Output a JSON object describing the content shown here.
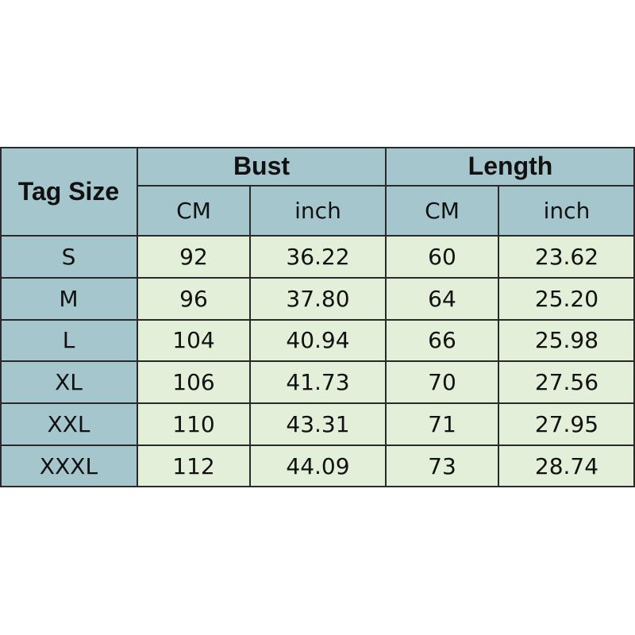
{
  "table": {
    "tag_size": "Tag Size",
    "groups": [
      "Bust",
      "Length"
    ],
    "subheaders": [
      "CM",
      "inch",
      "CM",
      "inch"
    ],
    "rows": [
      [
        "S",
        "92",
        "36.22",
        "60",
        "23.62"
      ],
      [
        "M",
        "96",
        "37.80",
        "64",
        "25.20"
      ],
      [
        "L",
        "104",
        "40.94",
        "66",
        "25.98"
      ],
      [
        "XL",
        "106",
        "41.73",
        "70",
        "27.56"
      ],
      [
        "XXL",
        "110",
        "43.31",
        "71",
        "27.95"
      ],
      [
        "XXXL",
        "112",
        "44.09",
        "73",
        "28.74"
      ]
    ]
  }
}
